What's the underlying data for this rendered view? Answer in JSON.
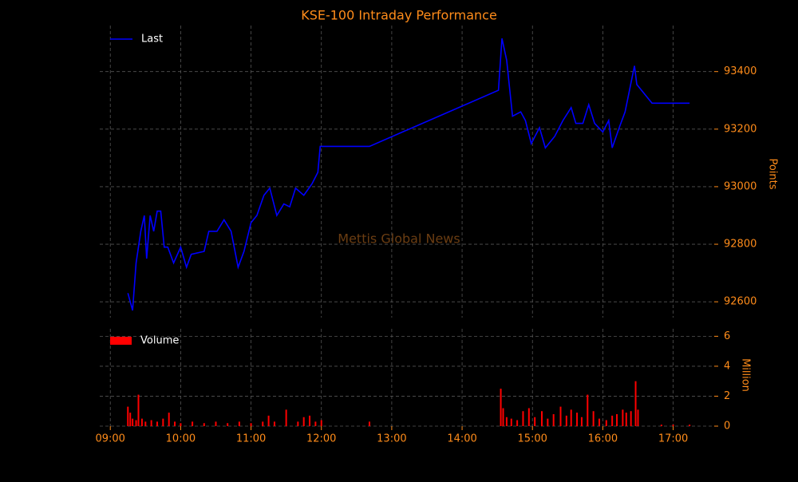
{
  "chart_data": [
    {
      "type": "line",
      "title": "KSE-100 Intraday Performance",
      "ylabel": "Points",
      "annotation": "Mettis Global News",
      "xlim": [
        "08:51",
        "17:35"
      ],
      "ylim": [
        92545,
        93560
      ],
      "yticks": [
        92600,
        92800,
        93000,
        93200,
        93400
      ],
      "grid": true,
      "legend": "upper left",
      "series": [
        {
          "name": "Last",
          "color": "#0000ff",
          "x": [
            "09:15",
            "09:19",
            "09:22",
            "09:26",
            "09:29",
            "09:31",
            "09:34",
            "09:37",
            "09:40",
            "09:43",
            "09:46",
            "09:49",
            "09:54",
            "10:00",
            "10:05",
            "10:09",
            "10:20",
            "10:24",
            "10:31",
            "10:37",
            "10:43",
            "10:49",
            "10:54",
            "11:00",
            "11:05",
            "11:11",
            "11:16",
            "11:22",
            "11:28",
            "11:33",
            "11:38",
            "11:45",
            "11:52",
            "11:57",
            "11:59",
            "12:41",
            "14:31",
            "14:34",
            "14:38",
            "14:43",
            "14:50",
            "14:54",
            "14:59",
            "15:06",
            "15:11",
            "15:19",
            "15:26",
            "15:33",
            "15:37",
            "15:43",
            "15:48",
            "15:53",
            "16:00",
            "16:05",
            "16:08",
            "16:14",
            "16:19",
            "16:23",
            "16:27",
            "16:29",
            "16:42",
            "17:14"
          ],
          "values": [
            92630,
            92570,
            92735,
            92845,
            92900,
            92750,
            92900,
            92845,
            92915,
            92915,
            92790,
            92790,
            92735,
            92790,
            92720,
            92765,
            92775,
            92845,
            92845,
            92885,
            92845,
            92720,
            92775,
            92875,
            92900,
            92970,
            92995,
            92900,
            92940,
            92930,
            92995,
            92970,
            93010,
            93050,
            93140,
            93140,
            93335,
            93515,
            93440,
            93245,
            93260,
            93230,
            93150,
            93205,
            93135,
            93175,
            93230,
            93275,
            93220,
            93220,
            93285,
            93220,
            93190,
            93230,
            93135,
            93205,
            93260,
            93340,
            93420,
            93355,
            93290,
            93290
          ]
        }
      ]
    },
    {
      "type": "bar",
      "ylabel": "Million",
      "xlim": [
        "08:51",
        "17:35"
      ],
      "ylim": [
        0,
        6.5
      ],
      "yticks": [
        0,
        2,
        4,
        6
      ],
      "xticks": [
        "09:00",
        "10:00",
        "11:00",
        "12:00",
        "13:00",
        "14:00",
        "15:00",
        "16:00",
        "17:00"
      ],
      "grid": true,
      "legend": "upper left",
      "series": [
        {
          "name": "Volume",
          "color": "#ff0000",
          "x": [
            "09:15",
            "09:17",
            "09:19",
            "09:22",
            "09:24",
            "09:27",
            "09:30",
            "09:35",
            "09:40",
            "09:45",
            "09:50",
            "09:55",
            "10:00",
            "10:10",
            "10:20",
            "10:30",
            "10:40",
            "10:50",
            "11:00",
            "11:10",
            "11:15",
            "11:20",
            "11:30",
            "11:40",
            "11:45",
            "11:50",
            "11:55",
            "12:00",
            "12:41",
            "14:33",
            "14:35",
            "14:38",
            "14:42",
            "14:47",
            "14:52",
            "14:57",
            "15:02",
            "15:08",
            "15:13",
            "15:18",
            "15:24",
            "15:29",
            "15:33",
            "15:38",
            "15:42",
            "15:47",
            "15:52",
            "15:57",
            "16:03",
            "16:08",
            "16:12",
            "16:17",
            "16:20",
            "16:24",
            "16:28",
            "16:30",
            "16:50",
            "17:00",
            "17:14"
          ],
          "values": [
            1.3,
            0.9,
            0.5,
            0.4,
            2.1,
            0.5,
            0.3,
            0.4,
            0.3,
            0.5,
            0.9,
            0.3,
            0.2,
            0.3,
            0.2,
            0.3,
            0.2,
            0.3,
            0.2,
            0.3,
            0.7,
            0.3,
            1.1,
            0.3,
            0.6,
            0.7,
            0.3,
            0.4,
            0.3,
            2.5,
            1.2,
            0.6,
            0.5,
            0.4,
            1.0,
            1.2,
            0.6,
            1.0,
            0.5,
            0.8,
            1.3,
            0.7,
            1.1,
            0.9,
            0.6,
            2.1,
            1.0,
            0.5,
            0.4,
            0.7,
            0.8,
            1.1,
            0.9,
            1.0,
            3.0,
            1.1,
            0.1,
            0.1,
            0.1
          ]
        }
      ]
    }
  ]
}
